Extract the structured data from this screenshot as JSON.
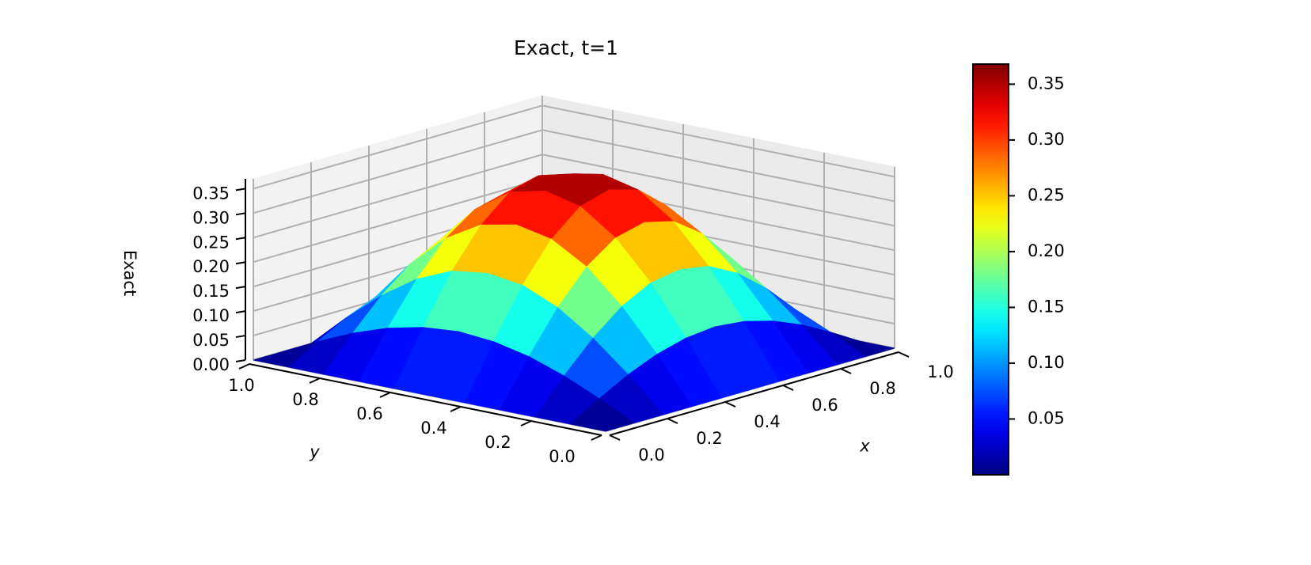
{
  "chart_data": {
    "type": "surface",
    "title": "Exact, t=1",
    "xlabel": "x",
    "ylabel": "y",
    "zlabel": "Exact",
    "colormap": "jet",
    "x": [
      0,
      0.1,
      0.2,
      0.3,
      0.4,
      0.5,
      0.6,
      0.7,
      0.8,
      0.9,
      1
    ],
    "y": [
      0,
      0.1,
      0.2,
      0.3,
      0.4,
      0.5,
      0.6,
      0.7,
      0.8,
      0.9,
      1
    ],
    "z": [
      [
        0,
        0,
        0,
        0,
        0,
        0,
        0,
        0,
        0,
        0,
        0
      ],
      [
        0,
        0.035,
        0.067,
        0.092,
        0.108,
        0.114,
        0.108,
        0.092,
        0.067,
        0.035,
        0
      ],
      [
        0,
        0.067,
        0.127,
        0.175,
        0.206,
        0.216,
        0.206,
        0.175,
        0.127,
        0.067,
        0
      ],
      [
        0,
        0.092,
        0.175,
        0.241,
        0.283,
        0.298,
        0.283,
        0.241,
        0.175,
        0.092,
        0
      ],
      [
        0,
        0.108,
        0.206,
        0.283,
        0.333,
        0.35,
        0.333,
        0.283,
        0.206,
        0.108,
        0
      ],
      [
        0,
        0.114,
        0.216,
        0.298,
        0.35,
        0.368,
        0.35,
        0.298,
        0.216,
        0.114,
        0
      ],
      [
        0,
        0.108,
        0.206,
        0.283,
        0.333,
        0.35,
        0.333,
        0.283,
        0.206,
        0.108,
        0
      ],
      [
        0,
        0.092,
        0.175,
        0.241,
        0.283,
        0.298,
        0.283,
        0.241,
        0.175,
        0.092,
        0
      ],
      [
        0,
        0.067,
        0.127,
        0.175,
        0.206,
        0.216,
        0.206,
        0.175,
        0.127,
        0.067,
        0
      ],
      [
        0,
        0.035,
        0.067,
        0.092,
        0.108,
        0.114,
        0.108,
        0.092,
        0.067,
        0.035,
        0
      ],
      [
        0,
        0,
        0,
        0,
        0,
        0,
        0,
        0,
        0,
        0,
        0
      ]
    ],
    "xlim": [
      0,
      1
    ],
    "ylim": [
      0,
      1
    ],
    "zlim": [
      0,
      0.37
    ],
    "xticks": [
      {
        "value": 0,
        "label": "0.0"
      },
      0.2,
      0.4,
      0.6,
      0.8,
      {
        "value": 1,
        "label": "1.0"
      }
    ],
    "yticks": [
      {
        "value": 0,
        "label": "0.0"
      },
      0.2,
      0.4,
      0.6,
      0.8,
      {
        "value": 1,
        "label": "1.0"
      }
    ],
    "zticks": [
      {
        "value": 0,
        "label": "0.00"
      },
      0.05,
      {
        "value": 0.1,
        "label": "0.10"
      },
      0.15,
      {
        "value": 0.2,
        "label": "0.20"
      },
      0.25,
      {
        "value": 0.3,
        "label": "0.30"
      },
      0.35
    ],
    "clim": [
      0,
      0.368
    ],
    "cbticks": [
      0.05,
      {
        "value": 0.1,
        "label": "0.10"
      },
      0.15,
      {
        "value": 0.2,
        "label": "0.20"
      },
      0.25,
      {
        "value": 0.3,
        "label": "0.30"
      },
      0.35
    ],
    "grid": true
  }
}
